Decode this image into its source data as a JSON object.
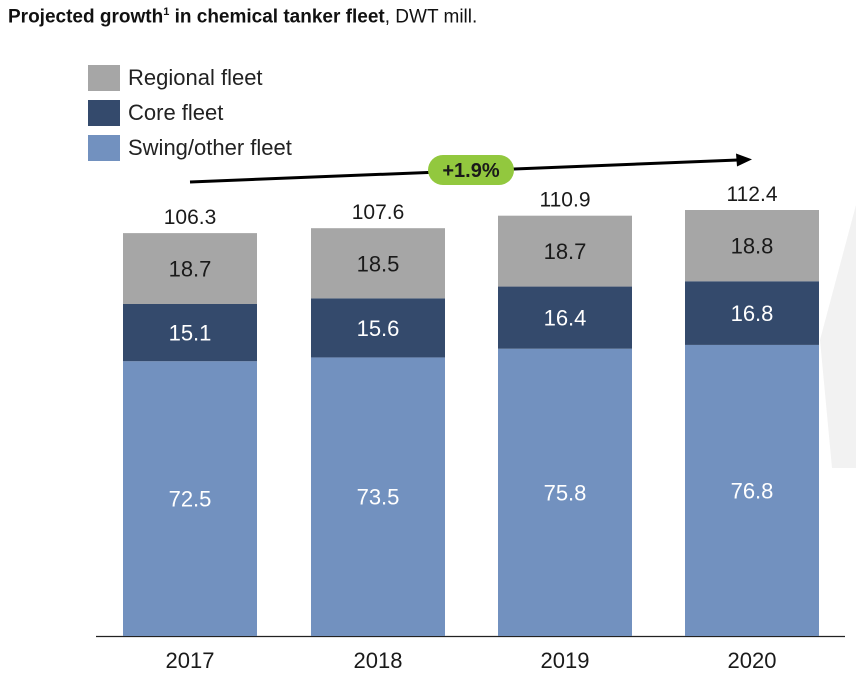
{
  "title": {
    "bold_prefix": "Projected growth",
    "footnote_mark": "1",
    "bold_suffix": " in chemical tanker fleet",
    "unit": ", DWT mill."
  },
  "colors": {
    "regional": "#a6a6a6",
    "core": "#344a6c",
    "swing": "#7291bf",
    "badge": "#92c83e",
    "arrow": "#000000"
  },
  "growth_badge": "+1.9%",
  "chart_data": {
    "type": "bar",
    "stacked": true,
    "categories": [
      "2017",
      "2018",
      "2019",
      "2020"
    ],
    "series": [
      {
        "name": "Swing/other fleet",
        "key": "swing",
        "values": [
          72.5,
          73.5,
          75.8,
          76.8
        ]
      },
      {
        "name": "Core fleet",
        "key": "core",
        "values": [
          15.1,
          15.6,
          16.4,
          16.8
        ]
      },
      {
        "name": "Regional fleet",
        "key": "regional",
        "values": [
          18.7,
          18.5,
          18.7,
          18.8
        ]
      }
    ],
    "totals": [
      "106.3",
      "107.6",
      "110.9",
      "112.4"
    ],
    "ylim": [
      0,
      112.4
    ],
    "legend": {
      "position": "top-left",
      "entries": [
        "Regional fleet",
        "Core fleet",
        "Swing/other fleet"
      ]
    }
  }
}
